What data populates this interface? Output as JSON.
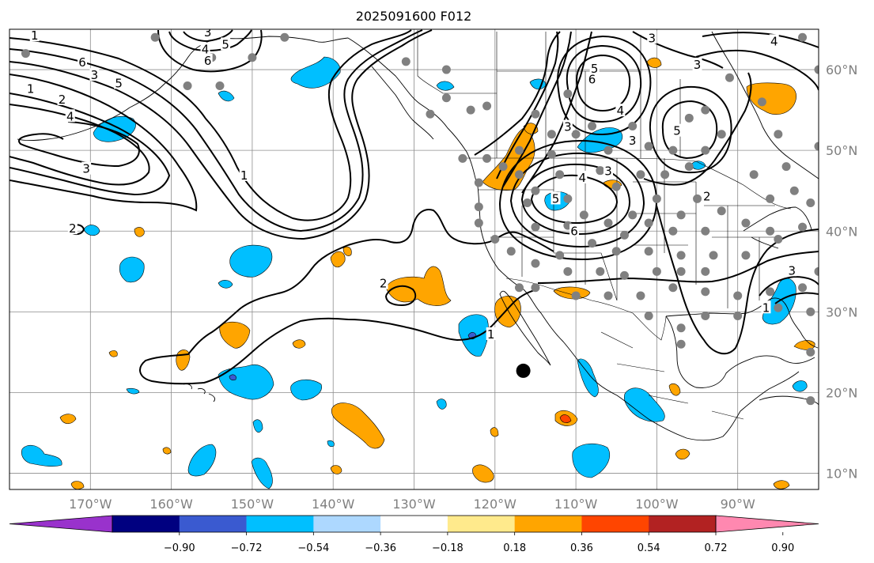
{
  "title": "2025091600 F012",
  "colors": {
    "grid": "#8c8c8c",
    "land": "#000000",
    "contour": "#000000",
    "neg_fill": "#00bfff",
    "neg_fill_strong": "#3a5ad0",
    "pos_fill": "#ffa500",
    "pos_fill_strong": "#ff4500",
    "dot": "#808080"
  },
  "map": {
    "projection": "Plate Carree",
    "lon_range": [
      -180,
      -80
    ],
    "lat_range": [
      8,
      65
    ],
    "lon_ticks": [
      {
        "value": -170,
        "label": "170°W"
      },
      {
        "value": -160,
        "label": "160°W"
      },
      {
        "value": -150,
        "label": "150°W"
      },
      {
        "value": -140,
        "label": "140°W"
      },
      {
        "value": -130,
        "label": "130°W"
      },
      {
        "value": -120,
        "label": "120°W"
      },
      {
        "value": -110,
        "label": "110°W"
      },
      {
        "value": -100,
        "label": "100°W"
      },
      {
        "value": -90,
        "label": "90°W"
      }
    ],
    "lat_ticks": [
      {
        "value": 60,
        "label": "60°N"
      },
      {
        "value": 50,
        "label": "50°N"
      },
      {
        "value": 40,
        "label": "40°N"
      },
      {
        "value": 30,
        "label": "30°N"
      },
      {
        "value": 20,
        "label": "20°N"
      },
      {
        "value": 10,
        "label": "10°N"
      }
    ],
    "contour_labels": [
      {
        "text": "6",
        "lon": -171,
        "lat": 60.8
      },
      {
        "text": "3",
        "lon": -169.5,
        "lat": 59.2
      },
      {
        "text": "5",
        "lon": -166.5,
        "lat": 58.2
      },
      {
        "text": "1",
        "lon": -177.4,
        "lat": 57.5
      },
      {
        "text": "2",
        "lon": -173.5,
        "lat": 56.2
      },
      {
        "text": "4",
        "lon": -172.5,
        "lat": 54.1
      },
      {
        "text": "3",
        "lon": -170.5,
        "lat": 47.6
      },
      {
        "text": "3",
        "lon": -155.5,
        "lat": 64.5
      },
      {
        "text": "4",
        "lon": -155.8,
        "lat": 62.4
      },
      {
        "text": "5",
        "lon": -153.3,
        "lat": 63.0
      },
      {
        "text": "6",
        "lon": -155.5,
        "lat": 61.0
      },
      {
        "text": "1",
        "lon": -151.0,
        "lat": 46.8
      },
      {
        "text": "2",
        "lon": -172.2,
        "lat": 40.2
      },
      {
        "text": "2",
        "lon": -133.8,
        "lat": 33.4
      },
      {
        "text": "1",
        "lon": -120.5,
        "lat": 27.1
      },
      {
        "text": "3",
        "lon": -100.6,
        "lat": 63.8
      },
      {
        "text": "6",
        "lon": -108.0,
        "lat": 58.7
      },
      {
        "text": "5",
        "lon": -107.7,
        "lat": 60.0
      },
      {
        "text": "3",
        "lon": -95.0,
        "lat": 60.5
      },
      {
        "text": "4",
        "lon": -104.5,
        "lat": 54.8
      },
      {
        "text": "3",
        "lon": -111.0,
        "lat": 52.8
      },
      {
        "text": "3",
        "lon": -103.0,
        "lat": 51.1
      },
      {
        "text": "4",
        "lon": -109.2,
        "lat": 46.5
      },
      {
        "text": "3",
        "lon": -106.0,
        "lat": 47.3
      },
      {
        "text": "5",
        "lon": -112.5,
        "lat": 43.9
      },
      {
        "text": "6",
        "lon": -110.2,
        "lat": 39.9
      },
      {
        "text": "5",
        "lon": -97.5,
        "lat": 52.3
      },
      {
        "text": "2",
        "lon": -93.8,
        "lat": 44.2
      },
      {
        "text": "4",
        "lon": -85.5,
        "lat": 63.4
      },
      {
        "text": "1",
        "lon": -86.5,
        "lat": 30.4
      },
      {
        "text": "3",
        "lon": -83.3,
        "lat": 35.0
      },
      {
        "text": "1",
        "lon": -176.9,
        "lat": 64.1
      }
    ]
  },
  "colorbar": {
    "ticks": [
      "−0.90",
      "−0.72",
      "−0.54",
      "−0.36",
      "−0.18",
      "0.18",
      "0.36",
      "0.54",
      "0.72",
      "0.90"
    ],
    "colors": [
      "#9932cc",
      "#000080",
      "#3a5ad0",
      "#00bfff",
      "#add8ff",
      "#ffffff",
      "#ffea8c",
      "#ffa500",
      "#ff4500",
      "#b22222",
      "#ff88b0"
    ]
  },
  "stations": [
    [
      -162,
      64
    ],
    [
      -155,
      61.5
    ],
    [
      -158,
      58
    ],
    [
      -178,
      62
    ],
    [
      -154,
      58
    ],
    [
      -150,
      61.5
    ],
    [
      -146,
      64
    ],
    [
      -131,
      61
    ],
    [
      -126,
      60
    ],
    [
      -126,
      56.5
    ],
    [
      -123,
      55
    ],
    [
      -128,
      54.5
    ],
    [
      -121,
      55.5
    ],
    [
      -117,
      50
    ],
    [
      -119,
      48
    ],
    [
      -121,
      49
    ],
    [
      -124,
      49
    ],
    [
      -122,
      46
    ],
    [
      -122,
      43
    ],
    [
      -117,
      47
    ],
    [
      -115,
      54.5
    ],
    [
      -113,
      52
    ],
    [
      -113,
      49.5
    ],
    [
      -110,
      52
    ],
    [
      -111,
      57
    ],
    [
      -108,
      53
    ],
    [
      -106,
      50
    ],
    [
      -103,
      53
    ],
    [
      -101,
      50.5
    ],
    [
      -98,
      50
    ],
    [
      -96,
      54
    ],
    [
      -94,
      50
    ],
    [
      -92,
      52
    ],
    [
      -96,
      48
    ],
    [
      -99,
      47
    ],
    [
      -102,
      47
    ],
    [
      -105,
      45.5
    ],
    [
      -107,
      47.5
    ],
    [
      -112,
      47
    ],
    [
      -115,
      45
    ],
    [
      -116,
      43.5
    ],
    [
      -111,
      44
    ],
    [
      -109,
      42
    ],
    [
      -106,
      41
    ],
    [
      -103,
      42
    ],
    [
      -100,
      44
    ],
    [
      -97,
      42
    ],
    [
      -95,
      44
    ],
    [
      -94,
      40
    ],
    [
      -98,
      40
    ],
    [
      -101,
      41
    ],
    [
      -104,
      39.5
    ],
    [
      -108,
      38.5
    ],
    [
      -112,
      37
    ],
    [
      -115,
      36
    ],
    [
      -118,
      37.5
    ],
    [
      -120,
      39
    ],
    [
      -122,
      41
    ],
    [
      -115,
      40.5
    ],
    [
      -111,
      40.7
    ],
    [
      -105,
      37.5
    ],
    [
      -101,
      37.5
    ],
    [
      -97,
      37
    ],
    [
      -93,
      37
    ],
    [
      -89,
      37
    ],
    [
      -86,
      40
    ],
    [
      -85,
      39
    ],
    [
      -82,
      40.5
    ],
    [
      -89,
      41
    ],
    [
      -92,
      42.5
    ],
    [
      -94,
      35
    ],
    [
      -97,
      35
    ],
    [
      -100,
      35
    ],
    [
      -104,
      34.5
    ],
    [
      -107,
      35
    ],
    [
      -111,
      35
    ],
    [
      -115,
      33
    ],
    [
      -117,
      33
    ],
    [
      -110,
      32
    ],
    [
      -106,
      32
    ],
    [
      -102,
      32
    ],
    [
      -98,
      33
    ],
    [
      -94,
      32.5
    ],
    [
      -90,
      32
    ],
    [
      -86,
      32.5
    ],
    [
      -82,
      33
    ],
    [
      -80,
      35
    ],
    [
      -97,
      28
    ],
    [
      -94,
      29.5
    ],
    [
      -90,
      29.5
    ],
    [
      -85,
      30.5
    ],
    [
      -81,
      30
    ],
    [
      -97,
      26
    ],
    [
      -81,
      25
    ],
    [
      -81,
      19
    ],
    [
      -86,
      44
    ],
    [
      -83,
      45
    ],
    [
      -81,
      43.5
    ],
    [
      -84,
      48
    ],
    [
      -88,
      47
    ],
    [
      -85,
      52
    ],
    [
      -80,
      50.5
    ],
    [
      -87,
      56
    ],
    [
      -91,
      59
    ],
    [
      -94,
      55
    ],
    [
      -82,
      64
    ],
    [
      -80,
      60
    ],
    [
      -101,
      29.5
    ]
  ],
  "large_dot": {
    "lon": -116.5,
    "lat": 22.7
  }
}
